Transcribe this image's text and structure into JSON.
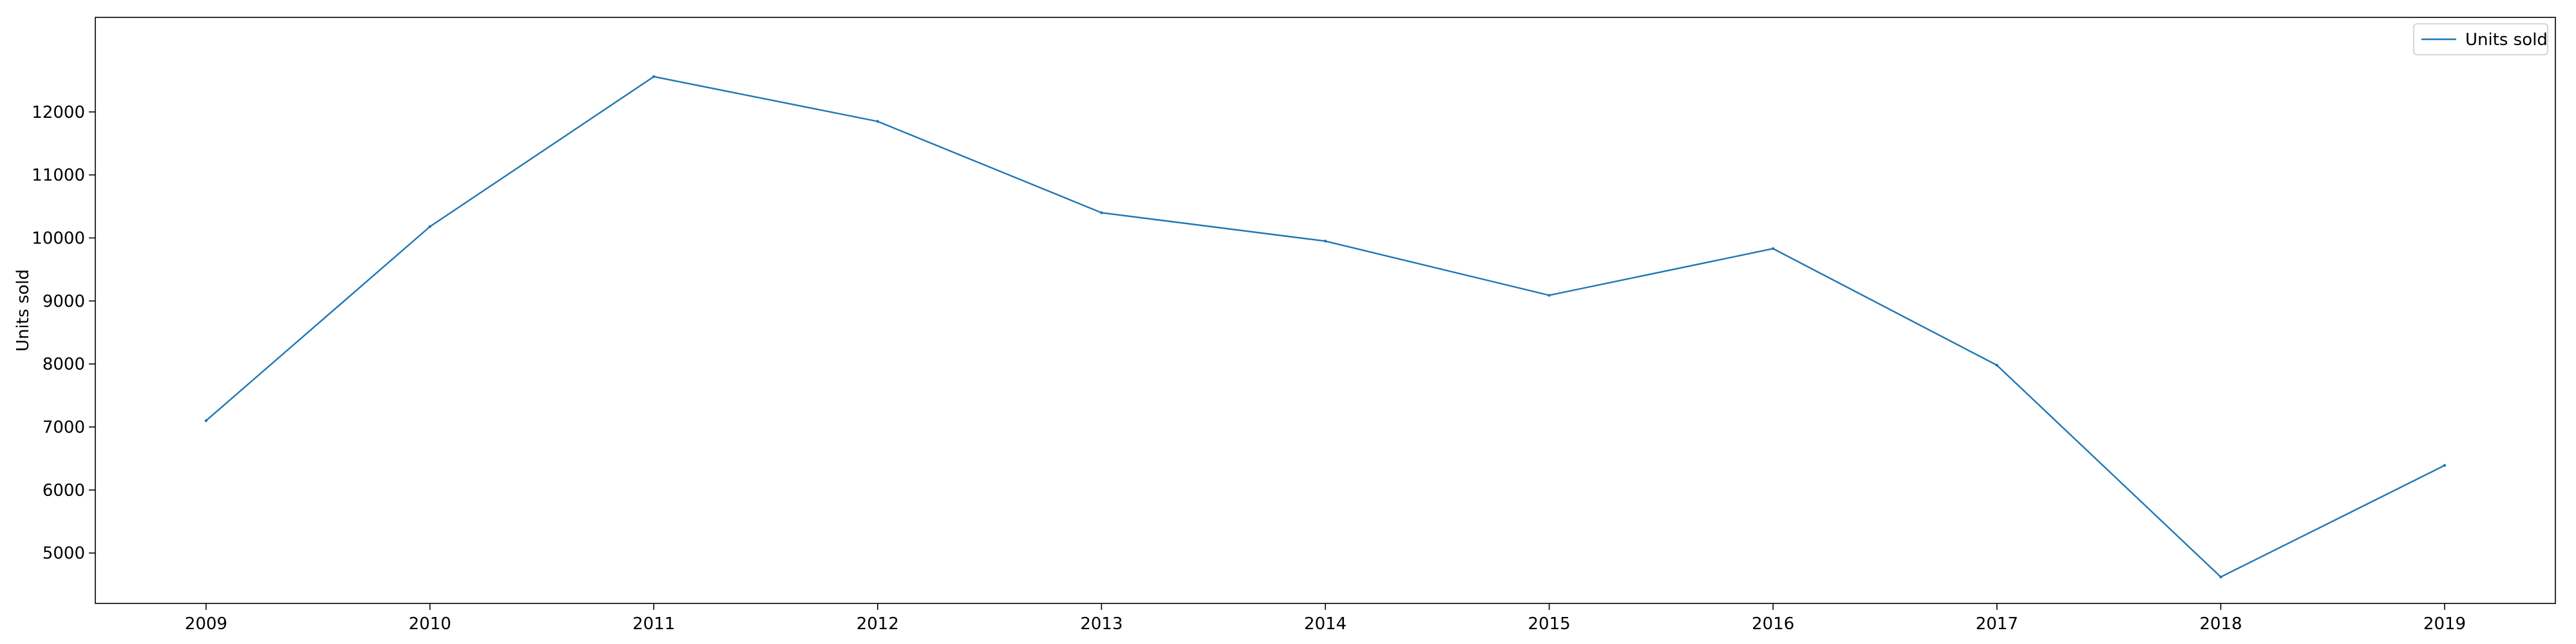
{
  "chart_data": {
    "type": "line",
    "title": "",
    "xlabel": "",
    "ylabel": "Units sold",
    "x": [
      "2009",
      "2010",
      "2011",
      "2012",
      "2013",
      "2014",
      "2015",
      "2016",
      "2017",
      "2018",
      "2019"
    ],
    "series": [
      {
        "name": "Units sold",
        "color": "#1f77b4",
        "values": [
          7100,
          10180,
          12560,
          11850,
          10400,
          9950,
          9090,
          9830,
          7980,
          4620,
          6390
        ]
      }
    ],
    "ylim": [
      4200,
      13500
    ],
    "y_ticks": [
      5000,
      6000,
      7000,
      8000,
      9000,
      10000,
      11000,
      12000
    ],
    "legend_position": "top-right",
    "grid": false
  }
}
